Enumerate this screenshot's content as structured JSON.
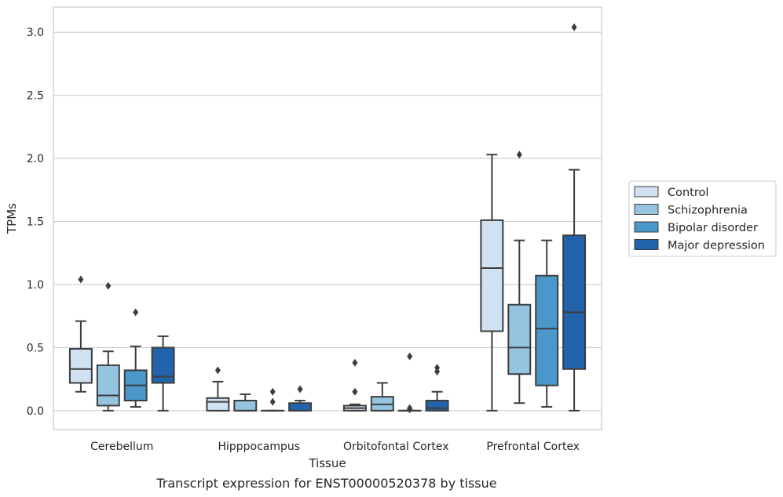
{
  "chart_data": {
    "type": "box",
    "caption": "Transcript expression for ENST00000520378 by tissue",
    "xlabel": "Tissue",
    "ylabel": "TPMs",
    "ylim": [
      -0.15,
      3.2
    ],
    "yticks": [
      "0.0",
      "0.5",
      "1.0",
      "1.5",
      "2.0",
      "2.5",
      "3.0"
    ],
    "grid": "horizontal",
    "legend_position": "right",
    "categories": [
      "Cerebellum",
      "Hipppocampus",
      "Orbitofontal Cortex",
      "Prefrontal Cortex"
    ],
    "series": [
      {
        "name": "Control",
        "color": "#d0e1f2",
        "boxes": [
          {
            "whislo": 0.15,
            "q1": 0.22,
            "med": 0.33,
            "q3": 0.49,
            "whishi": 0.71,
            "fliers": [
              1.04
            ]
          },
          {
            "whislo": 0.0,
            "q1": 0.0,
            "med": 0.07,
            "q3": 0.1,
            "whishi": 0.23,
            "fliers": [
              0.32
            ]
          },
          {
            "whislo": 0.0,
            "q1": 0.0,
            "med": 0.02,
            "q3": 0.04,
            "whishi": 0.05,
            "fliers": [
              0.15,
              0.38
            ]
          },
          {
            "whislo": 0.0,
            "q1": 0.63,
            "med": 1.13,
            "q3": 1.51,
            "whishi": 2.03,
            "fliers": []
          }
        ]
      },
      {
        "name": "Schizophrenia",
        "color": "#94c4df",
        "boxes": [
          {
            "whislo": 0.0,
            "q1": 0.04,
            "med": 0.12,
            "q3": 0.36,
            "whishi": 0.47,
            "fliers": [
              0.99
            ]
          },
          {
            "whislo": 0.0,
            "q1": 0.0,
            "med": 0.0,
            "q3": 0.08,
            "whishi": 0.13,
            "fliers": []
          },
          {
            "whislo": 0.0,
            "q1": 0.0,
            "med": 0.05,
            "q3": 0.11,
            "whishi": 0.22,
            "fliers": []
          },
          {
            "whislo": 0.06,
            "q1": 0.29,
            "med": 0.5,
            "q3": 0.84,
            "whishi": 1.35,
            "fliers": [
              2.03
            ]
          }
        ]
      },
      {
        "name": "Bipolar disorder",
        "color": "#4a98c9",
        "boxes": [
          {
            "whislo": 0.03,
            "q1": 0.08,
            "med": 0.2,
            "q3": 0.32,
            "whishi": 0.51,
            "fliers": [
              0.78
            ]
          },
          {
            "whislo": 0.0,
            "q1": 0.0,
            "med": 0.0,
            "q3": 0.0,
            "whishi": 0.0,
            "fliers": [
              0.07,
              0.15
            ]
          },
          {
            "whislo": 0.0,
            "q1": 0.0,
            "med": 0.0,
            "q3": 0.0,
            "whishi": 0.0,
            "fliers": [
              0.01,
              0.02,
              0.43
            ]
          },
          {
            "whislo": 0.03,
            "q1": 0.2,
            "med": 0.65,
            "q3": 1.07,
            "whishi": 1.35,
            "fliers": []
          }
        ]
      },
      {
        "name": "Major depression",
        "color": "#2164ab",
        "boxes": [
          {
            "whislo": 0.0,
            "q1": 0.22,
            "med": 0.27,
            "q3": 0.5,
            "whishi": 0.59,
            "fliers": []
          },
          {
            "whislo": 0.0,
            "q1": 0.0,
            "med": 0.0,
            "q3": 0.06,
            "whishi": 0.08,
            "fliers": [
              0.17
            ]
          },
          {
            "whislo": 0.0,
            "q1": 0.0,
            "med": 0.02,
            "q3": 0.08,
            "whishi": 0.15,
            "fliers": [
              0.31,
              0.34
            ]
          },
          {
            "whislo": 0.0,
            "q1": 0.33,
            "med": 0.78,
            "q3": 1.39,
            "whishi": 1.91,
            "fliers": [
              3.04
            ]
          }
        ]
      }
    ]
  }
}
